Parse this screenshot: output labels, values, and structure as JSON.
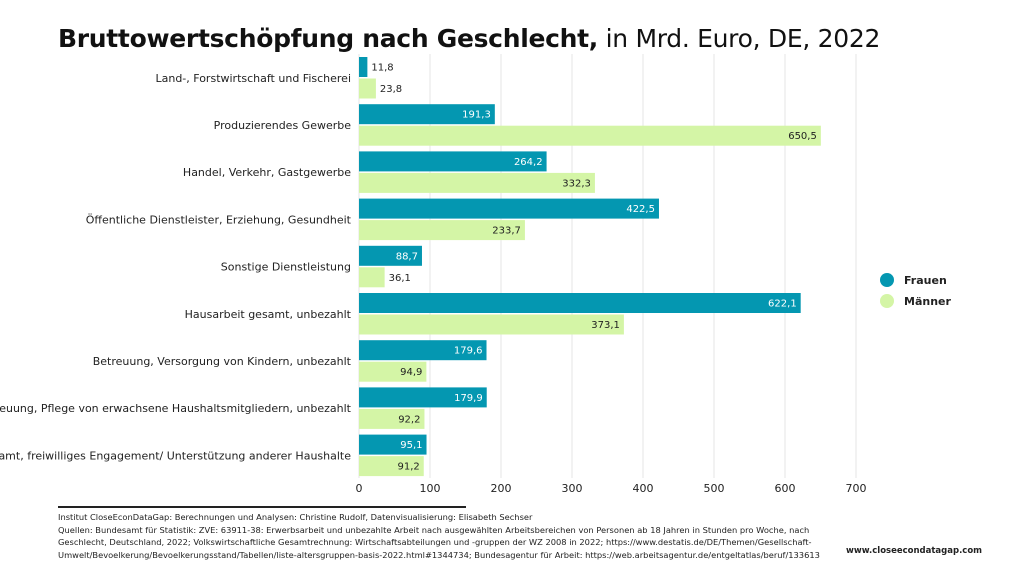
{
  "title": {
    "bold": "Bruttowertschöpfung nach Geschlecht,",
    "rest": " in Mrd. Euro, DE, 2022"
  },
  "colors": {
    "frauen": "#0497b1",
    "maenner": "#d4f5a6"
  },
  "chart_data": {
    "type": "bar",
    "orientation": "horizontal",
    "categories": [
      "Land-, Forstwirtschaft und Fischerei",
      "Produzierendes Gewerbe",
      "Handel, Verkehr, Gastgewerbe",
      "Öffentliche Dienstleister, Erziehung, Gesundheit",
      "Sonstige Dienstleistung",
      "Hausarbeit gesamt, unbezahlt",
      "Betreuung, Versorgung von Kindern, unbezahlt",
      "Betreuung, Pflege von erwachsene Haushaltsmitgliedern, unbezahlt",
      "Ehrenamt, freiwilliges Engagement/ Unterstützung anderer Haushalte"
    ],
    "series": [
      {
        "name": "Frauen",
        "values": [
          11.8,
          191.3,
          264.2,
          422.5,
          88.7,
          622.1,
          179.6,
          179.9,
          95.1
        ],
        "labels": [
          "11,8",
          "191,3",
          "264,2",
          "422,5",
          "88,7",
          "622,1",
          "179,6",
          "179,9",
          "95,1"
        ]
      },
      {
        "name": "Männer",
        "values": [
          23.8,
          650.5,
          332.3,
          233.7,
          36.1,
          373.1,
          94.9,
          92.2,
          91.2
        ],
        "labels": [
          "23,8",
          "650,5",
          "332,3",
          "233,7",
          "36,1",
          "373,1",
          "94,9",
          "92,2",
          "91,2"
        ]
      }
    ],
    "xlim": [
      0,
      700
    ],
    "xticks": [
      0,
      100,
      200,
      300,
      400,
      500,
      600,
      700
    ],
    "grid": true,
    "legend_position": "right"
  },
  "footer": {
    "lines": [
      "Institut CloseEconDataGap: Berechnungen und Analysen: Christine Rudolf, Datenvisualisierung: Elisabeth Sechser",
      "Quellen: Bundesamt für Statistik: ZVE: 63911-38: Erwerbsarbeit und unbezahlte Arbeit nach ausgewählten Arbeitsbereichen von Personen ab 18 Jahren in Stunden pro Woche, nach",
      "Geschlecht, Deutschland, 2022; Volkswirtschaftliche Gesamtrechnung: Wirtschaftsabteilungen und -gruppen der WZ 2008 in 2022; https://www.destatis.de/DE/Themen/Gesellschaft-",
      "Umwelt/Bevoelkerung/Bevoelkerungsstand/Tabellen/liste-altersgruppen-basis-2022.html#1344734; Bundesagentur für Arbeit: https://web.arbeitsagentur.de/entgeltatlas/beruf/133613"
    ],
    "website": "www.closeecondatagap.com"
  }
}
